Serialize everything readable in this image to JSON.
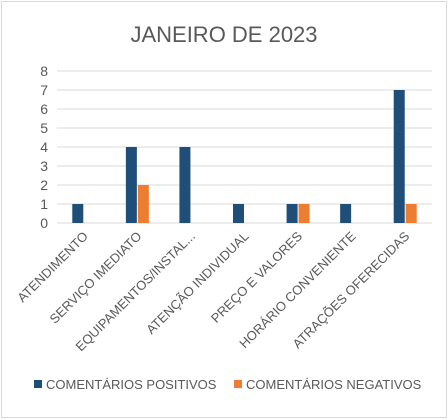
{
  "chart_data": {
    "type": "bar",
    "title": "JANEIRO DE 2023",
    "categories": [
      "ATENDIMENTO",
      "SERVIÇO IMEDIATO",
      "EQUIPAMENTOS/INSTAL...",
      "ATENÇÃO INDIVIDUAL",
      "PREÇO E VALORES",
      "HORÁRIO CONVENIENTE",
      "ATRAÇÕES OFERECIDAS"
    ],
    "series": [
      {
        "name": "COMENTÁRIOS POSITIVOS",
        "color": "#1f4e79",
        "values": [
          1,
          4,
          4,
          1,
          1,
          1,
          7
        ]
      },
      {
        "name": "COMENTÁRIOS NEGATIVOS",
        "color": "#ed7d31",
        "values": [
          0,
          2,
          0,
          0,
          1,
          0,
          1
        ]
      }
    ],
    "yticks": [
      "0",
      "1",
      "2",
      "3",
      "4",
      "5",
      "6",
      "7",
      "8"
    ],
    "ylim": [
      0,
      8
    ],
    "xlabel": "",
    "ylabel": "",
    "grid": true,
    "legend_position": "bottom"
  }
}
